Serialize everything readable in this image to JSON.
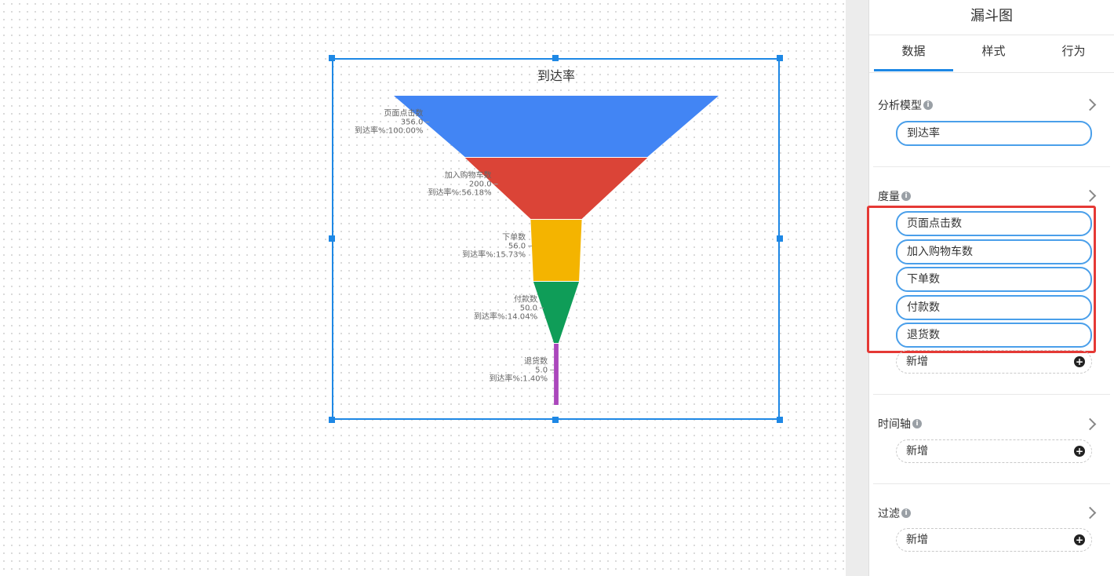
{
  "panel": {
    "title": "漏斗图",
    "tabs": [
      {
        "label": "数据",
        "active": true
      },
      {
        "label": "样式",
        "active": false
      },
      {
        "label": "行为",
        "active": false
      }
    ],
    "sections": {
      "model": {
        "label": "分析模型",
        "value": "到达率"
      },
      "measures": {
        "label": "度量",
        "items": [
          "页面点击数",
          "加入购物车数",
          "下单数",
          "付款数",
          "退货数"
        ],
        "add_label": "新增"
      },
      "timeline": {
        "label": "时间轴",
        "add_label": "新增"
      },
      "filter": {
        "label": "过滤",
        "add_label": "新增"
      }
    },
    "accent_color": "#1e88e5",
    "highlight_color": "#e53935"
  },
  "chart_data": {
    "type": "funnel",
    "title": "到达率",
    "stages": [
      {
        "name": "页面点击数",
        "value": 356.0,
        "value_label": "356.0",
        "rate_label": "到达率%:100.00%",
        "color": "#4285f4"
      },
      {
        "name": "加入购物车数",
        "value": 200.0,
        "value_label": "200.0",
        "rate_label": "到达率%:56.18%",
        "color": "#db4437"
      },
      {
        "name": "下单数",
        "value": 56.0,
        "value_label": "56.0",
        "rate_label": "到达率%:15.73%",
        "color": "#f4b400"
      },
      {
        "name": "付款数",
        "value": 50.0,
        "value_label": "50.0",
        "rate_label": "到达率%:14.04%",
        "color": "#0f9d58"
      },
      {
        "name": "退货数",
        "value": 5.0,
        "value_label": "5.0",
        "rate_label": "到达率%:1.40%",
        "color": "#ab47bc"
      }
    ]
  }
}
